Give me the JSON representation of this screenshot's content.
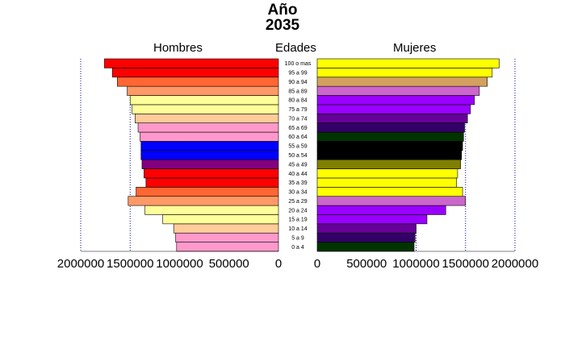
{
  "chart_data": {
    "type": "bar",
    "title": "Año",
    "subtitle": "2035",
    "left_label": "Hombres",
    "center_label": "Edades",
    "right_label": "Mujeres",
    "categories": [
      "0 a 4",
      "5 a 9",
      "10 a 14",
      "15 a 19",
      "20 a 24",
      "25 a 29",
      "30 a 34",
      "35 a 39",
      "40 a 44",
      "45 a 49",
      "50 a 54",
      "55 a 59",
      "60 a 64",
      "65 a 69",
      "70 a 74",
      "75 a 79",
      "80 a 84",
      "85 a 89",
      "90 a 94",
      "95 a 99",
      "100 o mas"
    ],
    "series": [
      {
        "name": "Hombres",
        "values": [
          1030000,
          1040000,
          1060000,
          1170000,
          1350000,
          1520000,
          1440000,
          1340000,
          1360000,
          1380000,
          1390000,
          1390000,
          1400000,
          1420000,
          1450000,
          1480000,
          1500000,
          1530000,
          1630000,
          1680000,
          1760000
        ],
        "colors": [
          "#ff99cc",
          "#ff99cc",
          "#ffcc99",
          "#ffff99",
          "#ffff99",
          "#ff9966",
          "#ff6633",
          "#ff0000",
          "#ff0000",
          "#800080",
          "#0000ff",
          "#0000ff",
          "#ff99cc",
          "#ff99cc",
          "#ffcc99",
          "#ffff99",
          "#ffff99",
          "#ff9966",
          "#ff6633",
          "#ff0000",
          "#ff0000"
        ]
      },
      {
        "name": "Mujeres",
        "values": [
          980000,
          990000,
          1000000,
          1110000,
          1300000,
          1500000,
          1470000,
          1410000,
          1420000,
          1450000,
          1460000,
          1470000,
          1480000,
          1490000,
          1520000,
          1550000,
          1590000,
          1640000,
          1720000,
          1770000,
          1840000
        ],
        "colors": [
          "#003300",
          "#330066",
          "#660099",
          "#9900ff",
          "#9900ff",
          "#cc66cc",
          "#ffff00",
          "#ffff00",
          "#ffff00",
          "#808000",
          "#000000",
          "#000000",
          "#003300",
          "#330066",
          "#660099",
          "#9900ff",
          "#9900ff",
          "#cc66cc",
          "#d4a060",
          "#ffff00",
          "#ffff00"
        ]
      }
    ],
    "xlim": [
      0,
      2000000
    ],
    "left_ticks": [
      "2000000",
      "1500000",
      "1000000",
      "500000",
      "0"
    ],
    "right_ticks": [
      "0",
      "500000",
      "1000000",
      "1500000",
      "2000000"
    ],
    "grid": "dotted vertical lines every 500000",
    "legend": "none"
  }
}
